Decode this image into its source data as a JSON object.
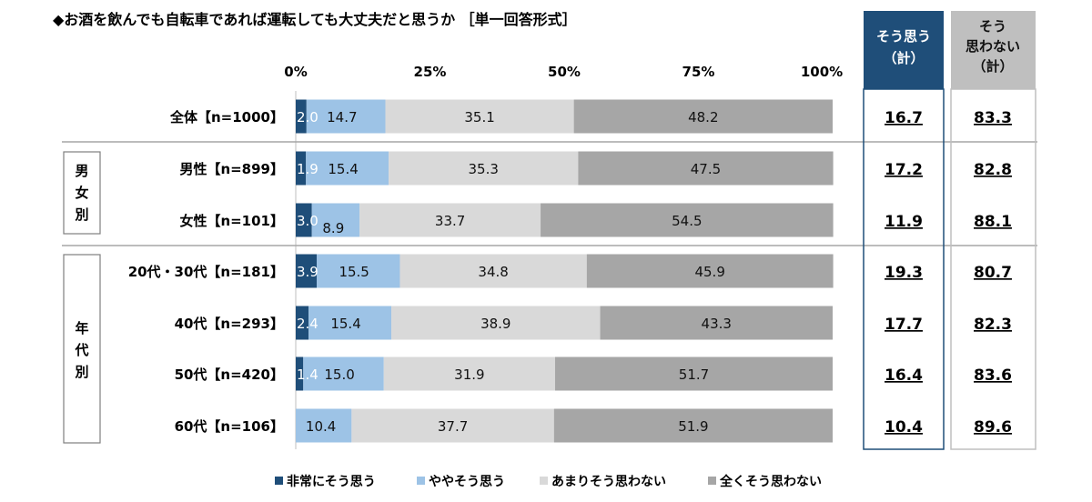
{
  "chart_data": {
    "type": "bar",
    "orientation": "horizontal",
    "stacked": true,
    "title": "◆お酒を飲んでも自転車であれば運転しても大丈夫だと思うか ［単一回答形式］",
    "x_ticks": [
      "0%",
      "25%",
      "50%",
      "75%",
      "100%"
    ],
    "xlim": [
      0,
      100
    ],
    "legend_position": "bottom",
    "series": [
      {
        "name": "非常にそう思う",
        "color": "#1f4e79"
      },
      {
        "name": "ややそう思う",
        "color": "#9dc3e6"
      },
      {
        "name": "あまりそう思わない",
        "color": "#d9d9d9"
      },
      {
        "name": "全くそう思わない",
        "color": "#a6a6a6"
      }
    ],
    "rows": [
      {
        "label": "全体【n=1000】",
        "values": [
          2.0,
          14.7,
          35.1,
          48.2
        ],
        "labels": [
          "2.0",
          "14.7",
          "35.1",
          "48.2"
        ],
        "sum_agree": "16.7",
        "sum_disagree": "83.3"
      },
      {
        "label": "男性【n=899】",
        "values": [
          1.9,
          15.4,
          35.3,
          47.5
        ],
        "labels": [
          "1.9",
          "15.4",
          "35.3",
          "47.5"
        ],
        "sum_agree": "17.2",
        "sum_disagree": "82.8"
      },
      {
        "label": "女性【n=101】",
        "values": [
          3.0,
          8.9,
          33.7,
          54.5
        ],
        "labels": [
          "3.0",
          "8.9",
          "33.7",
          "54.5"
        ],
        "sum_agree": "11.9",
        "sum_disagree": "88.1"
      },
      {
        "label": "20代・30代【n=181】",
        "values": [
          3.9,
          15.5,
          34.8,
          45.9
        ],
        "labels": [
          "3.9",
          "15.5",
          "34.8",
          "45.9"
        ],
        "sum_agree": "19.3",
        "sum_disagree": "80.7"
      },
      {
        "label": "40代【n=293】",
        "values": [
          2.4,
          15.4,
          38.9,
          43.3
        ],
        "labels": [
          "2.4",
          "15.4",
          "38.9",
          "43.3"
        ],
        "sum_agree": "17.7",
        "sum_disagree": "82.3"
      },
      {
        "label": "50代【n=420】",
        "values": [
          1.4,
          15.0,
          31.9,
          51.7
        ],
        "labels": [
          "1.4",
          "15.0",
          "31.9",
          "51.7"
        ],
        "sum_agree": "16.4",
        "sum_disagree": "83.6"
      },
      {
        "label": "60代【n=106】",
        "values": [
          0,
          10.4,
          37.7,
          51.9
        ],
        "labels": [
          "",
          "10.4",
          "37.7",
          "51.9"
        ],
        "sum_agree": "10.4",
        "sum_disagree": "89.6"
      }
    ],
    "groups": [
      {
        "label": "男女別"
      },
      {
        "label": "年代別"
      }
    ],
    "summary_headers": {
      "agree": [
        "そう思う",
        "（計）"
      ],
      "disagree": [
        "そう",
        "思わない",
        "（計）"
      ]
    }
  }
}
